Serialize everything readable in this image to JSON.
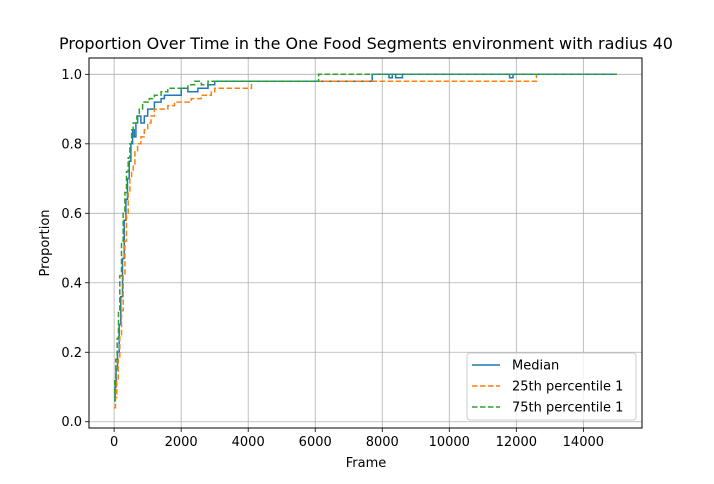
{
  "chart_data": {
    "type": "line",
    "title": "Proportion Over Time in the One Food Segments environment with radius 40",
    "xlabel": "Frame",
    "ylabel": "Proportion",
    "xlim": [
      -750,
      15750
    ],
    "ylim": [
      -0.018,
      1.047
    ],
    "xticks": [
      0,
      2000,
      4000,
      6000,
      8000,
      10000,
      12000,
      14000
    ],
    "xtick_labels": [
      "0",
      "2000",
      "4000",
      "6000",
      "8000",
      "10000",
      "12000",
      "14000"
    ],
    "yticks": [
      0.0,
      0.2,
      0.4,
      0.6,
      0.8,
      1.0
    ],
    "ytick_labels": [
      "0.0",
      "0.2",
      "0.4",
      "0.6",
      "0.8",
      "1.0"
    ],
    "grid": true,
    "legend_position": "lower-right",
    "series": [
      {
        "name": "Median",
        "color": "#1f77b4",
        "style": "solid",
        "x": [
          0,
          30,
          60,
          100,
          150,
          200,
          250,
          300,
          350,
          400,
          450,
          500,
          550,
          600,
          650,
          700,
          800,
          900,
          1000,
          1100,
          1200,
          1300,
          1400,
          1500,
          1600,
          1800,
          2000,
          2200,
          2500,
          2800,
          3000,
          4000,
          5000,
          6000,
          6500,
          7000,
          7600,
          7700,
          8000,
          8200,
          8300,
          8400,
          8600,
          9000,
          9200,
          10000,
          11000,
          11800,
          11900,
          12000,
          13000,
          14000,
          15000
        ],
        "y": [
          0.06,
          0.1,
          0.15,
          0.2,
          0.28,
          0.36,
          0.47,
          0.58,
          0.64,
          0.7,
          0.75,
          0.8,
          0.84,
          0.82,
          0.86,
          0.88,
          0.86,
          0.88,
          0.9,
          0.9,
          0.92,
          0.92,
          0.93,
          0.94,
          0.94,
          0.94,
          0.96,
          0.95,
          0.96,
          0.97,
          0.98,
          0.98,
          0.98,
          0.98,
          0.98,
          0.98,
          0.98,
          1.0,
          1.0,
          0.99,
          1.0,
          0.99,
          1.0,
          1.0,
          1.0,
          1.0,
          1.0,
          0.99,
          1.0,
          1.0,
          1.0,
          1.0,
          1.0
        ]
      },
      {
        "name": "25th percentile 1",
        "color": "#ff7f0e",
        "style": "dashed",
        "x": [
          0,
          40,
          80,
          120,
          170,
          220,
          270,
          320,
          370,
          420,
          470,
          520,
          570,
          620,
          700,
          800,
          900,
          1000,
          1100,
          1200,
          1400,
          1600,
          1800,
          2000,
          2300,
          2600,
          2900,
          3000,
          3500,
          4000,
          4100,
          5000,
          6000,
          7000,
          8000,
          8100,
          9000,
          9500,
          10000,
          11000,
          11800,
          12000,
          12600
        ],
        "y": [
          0.04,
          0.07,
          0.12,
          0.18,
          0.25,
          0.32,
          0.42,
          0.52,
          0.6,
          0.66,
          0.7,
          0.72,
          0.74,
          0.78,
          0.8,
          0.82,
          0.84,
          0.86,
          0.88,
          0.9,
          0.9,
          0.91,
          0.92,
          0.92,
          0.93,
          0.94,
          0.95,
          0.96,
          0.96,
          0.96,
          0.98,
          0.98,
          0.98,
          0.98,
          0.98,
          0.98,
          0.98,
          0.98,
          0.98,
          0.98,
          0.98,
          0.98,
          1.0
        ]
      },
      {
        "name": "75th percentile 1",
        "color": "#2ca02c",
        "style": "dashed",
        "x": [
          0,
          20,
          50,
          90,
          130,
          170,
          220,
          270,
          320,
          370,
          420,
          470,
          520,
          570,
          620,
          680,
          750,
          850,
          950,
          1050,
          1200,
          1400,
          1600,
          1800,
          2000,
          2200,
          2400,
          2600,
          2800,
          3000,
          4000,
          5000,
          6000,
          6100,
          6300,
          7000,
          8000,
          9000,
          10000,
          11000,
          12000,
          13000,
          14000,
          15000
        ],
        "y": [
          0.06,
          0.12,
          0.18,
          0.24,
          0.32,
          0.42,
          0.52,
          0.6,
          0.66,
          0.72,
          0.76,
          0.8,
          0.84,
          0.86,
          0.86,
          0.88,
          0.9,
          0.92,
          0.92,
          0.93,
          0.94,
          0.95,
          0.96,
          0.96,
          0.96,
          0.97,
          0.98,
          0.97,
          0.98,
          0.98,
          0.98,
          0.98,
          0.98,
          1.0,
          1.0,
          1.0,
          1.0,
          1.0,
          1.0,
          1.0,
          1.0,
          1.0,
          1.0,
          1.0
        ]
      }
    ]
  }
}
